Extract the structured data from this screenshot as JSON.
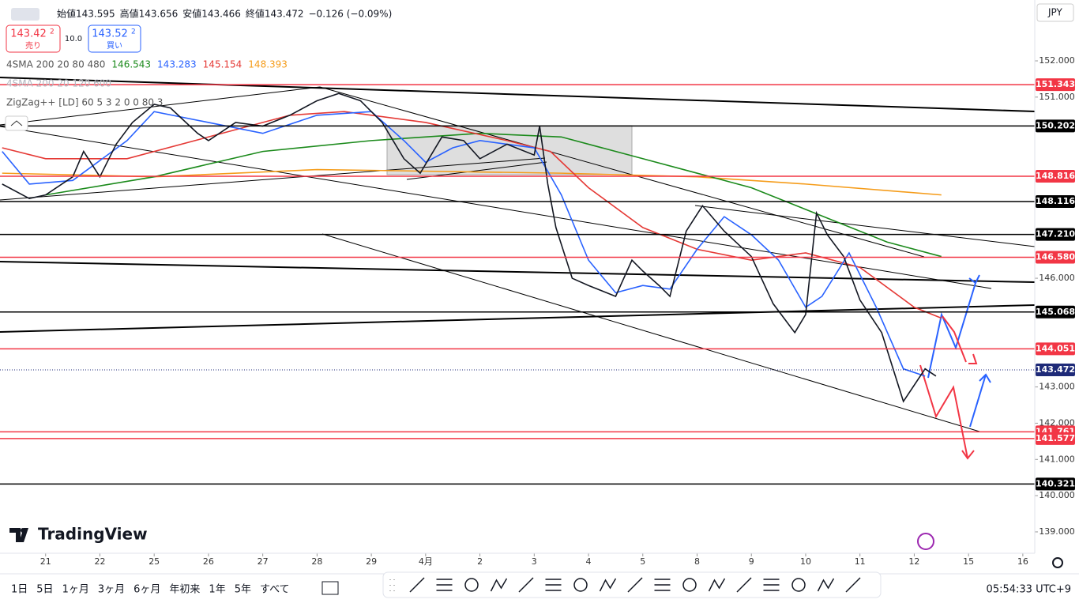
{
  "header": {
    "ohlc": [
      "始値143.595",
      "高値143.656",
      "安値143.466",
      "終値143.472"
    ],
    "change": "−0.126 (−0.09%)"
  },
  "trade": {
    "sell": {
      "price": "143.42",
      "sup": "2",
      "label": "売り"
    },
    "spread": "10.0",
    "buy": {
      "price": "143.52",
      "sup": "2",
      "label": "買い"
    }
  },
  "indicators": [
    {
      "name": "4SMA 200 20 80 480",
      "values": [
        {
          "text": "146.543",
          "color": "#1b8a1b"
        },
        {
          "text": "143.283",
          "color": "#2962ff"
        },
        {
          "text": "145.154",
          "color": "#e53935"
        },
        {
          "text": "148.393",
          "color": "#f59c1a"
        }
      ]
    },
    {
      "name": "4SMA 200 20 120 600",
      "values": []
    },
    {
      "name": "ZigZag++ [LD] 60 5 3 2 0 0 80 3",
      "values": []
    }
  ],
  "currency": "JPY",
  "brand": "TradingView",
  "ranges": [
    "1日",
    "5日",
    "1ヶ月",
    "3ヶ月",
    "6ヶ月",
    "年初来",
    "1年",
    "5年",
    "すべて"
  ],
  "clock": "05:54:33 UTC+9",
  "chart_data": {
    "type": "line",
    "xlim": [
      -0.84,
      18.22
    ],
    "ylim": [
      138.41,
      153.68
    ],
    "xticks": [
      {
        "value": 0,
        "label": "21"
      },
      {
        "value": 1,
        "label": "22"
      },
      {
        "value": 2,
        "label": "25"
      },
      {
        "value": 3,
        "label": "26"
      },
      {
        "value": 4,
        "label": "27"
      },
      {
        "value": 5,
        "label": "28"
      },
      {
        "value": 6,
        "label": "29"
      },
      {
        "value": 7,
        "label": "4月"
      },
      {
        "value": 8,
        "label": "2"
      },
      {
        "value": 9,
        "label": "3"
      },
      {
        "value": 10,
        "label": "4"
      },
      {
        "value": 11,
        "label": "5"
      },
      {
        "value": 12,
        "label": "8"
      },
      {
        "value": 13,
        "label": "9"
      },
      {
        "value": 14,
        "label": "10"
      },
      {
        "value": 15,
        "label": "11"
      },
      {
        "value": 16,
        "label": "12"
      },
      {
        "value": 17,
        "label": "15"
      },
      {
        "value": 18,
        "label": "16"
      }
    ],
    "yticks": [
      {
        "value": 139,
        "label": "139.000"
      },
      {
        "value": 140,
        "label": "140.000"
      },
      {
        "value": 141,
        "label": "141.000"
      },
      {
        "value": 142,
        "label": "142.000"
      },
      {
        "value": 143,
        "label": "143.000"
      },
      {
        "value": 146,
        "label": "146.000"
      },
      {
        "value": 151,
        "label": "151.000"
      },
      {
        "value": 152,
        "label": "152.000"
      }
    ],
    "levels": [
      {
        "value": 151.343,
        "color": "#f23645"
      },
      {
        "value": 150.202,
        "color": "#000000"
      },
      {
        "value": 148.816,
        "color": "#f23645"
      },
      {
        "value": 148.116,
        "color": "#000000"
      },
      {
        "value": {
          "value": 147.21,
          "label": "147.210"
        },
        "color": "#000000"
      },
      {
        "value": {
          "value": 146.58,
          "label": "146.580"
        },
        "color": "#f23645"
      },
      {
        "value": 145.068,
        "color": "#000000"
      },
      {
        "value": 144.051,
        "color": "#f23645"
      },
      {
        "value": 143.472,
        "color": "#1e2a78",
        "dotted": true
      },
      {
        "value": 141.761,
        "color": "#f23645"
      },
      {
        "value": 141.577,
        "color": "#f23645"
      },
      {
        "value": 140.321,
        "color": "#000000"
      }
    ],
    "series": [
      {
        "color": "#f59c1a",
        "x": [
          -0.8,
          2,
          5,
          9.5,
          12,
          14,
          16.5
        ],
        "values": [
          148.9,
          148.8,
          149.0,
          148.9,
          148.8,
          148.6,
          148.3
        ]
      },
      {
        "color": "#1b8a1b",
        "x": [
          0,
          2,
          4,
          6,
          8,
          9.5,
          11,
          13,
          14.5,
          15.5,
          16.5
        ],
        "values": [
          148.3,
          148.8,
          149.5,
          149.8,
          150.0,
          149.9,
          149.3,
          148.5,
          147.6,
          147.0,
          146.6
        ]
      },
      {
        "color": "#e53935",
        "x": [
          -0.8,
          0,
          1.5,
          3,
          4.5,
          5.5,
          7,
          8.5,
          9.3,
          10,
          11,
          12,
          13,
          14,
          15,
          16,
          16.5
        ],
        "values": [
          149.6,
          149.3,
          149.3,
          149.9,
          150.5,
          150.6,
          150.3,
          149.8,
          149.5,
          148.5,
          147.4,
          146.8,
          146.5,
          146.7,
          146.3,
          145.2,
          144.9
        ]
      },
      {
        "color": "#2962ff",
        "x": [
          -0.8,
          -0.3,
          0.5,
          1.5,
          2,
          3,
          4,
          5,
          6,
          6.6,
          7,
          7.5,
          8,
          9,
          9.5,
          10,
          10.5,
          11,
          11.5,
          12,
          12.5,
          13,
          13.5,
          14,
          14.3,
          14.8,
          15.3,
          15.8,
          16.2
        ],
        "values": [
          149.5,
          148.6,
          148.7,
          149.8,
          150.6,
          150.3,
          150.0,
          150.5,
          150.6,
          149.8,
          149.2,
          149.6,
          149.8,
          149.6,
          148.3,
          146.5,
          145.6,
          145.8,
          145.7,
          146.8,
          147.7,
          147.2,
          146.5,
          145.2,
          145.5,
          146.7,
          145.2,
          143.5,
          143.3
        ]
      },
      {
        "color": "#131722",
        "x": [
          -0.8,
          -0.3,
          0,
          0.5,
          0.7,
          1,
          1.3,
          1.6,
          2,
          2.3,
          2.8,
          3,
          3.5,
          4,
          4.5,
          5,
          5.4,
          5.8,
          6.2,
          6.6,
          6.9,
          7.3,
          7.7,
          8,
          8.5,
          9,
          9.1,
          9.25,
          9.4,
          9.7,
          10,
          10.5,
          10.8,
          11,
          11.3,
          11.5,
          11.8,
          12.1,
          12.5,
          13,
          13.4,
          13.8,
          14,
          14.2,
          14.4,
          14.7,
          15,
          15.4,
          15.8,
          16.2,
          16.4
        ],
        "values": [
          148.6,
          148.2,
          148.3,
          148.8,
          149.5,
          148.8,
          149.7,
          150.3,
          150.8,
          150.7,
          150.0,
          149.8,
          150.3,
          150.2,
          150.5,
          150.9,
          151.1,
          150.9,
          150.3,
          149.3,
          148.9,
          149.9,
          149.8,
          149.3,
          149.7,
          149.4,
          150.2,
          148.6,
          147.4,
          146.0,
          145.8,
          145.5,
          146.5,
          146.2,
          145.8,
          145.5,
          147.3,
          148.0,
          147.3,
          146.6,
          145.3,
          144.5,
          145.0,
          147.8,
          147.2,
          146.6,
          145.4,
          144.5,
          142.6,
          143.5,
          143.3
        ]
      }
    ]
  }
}
